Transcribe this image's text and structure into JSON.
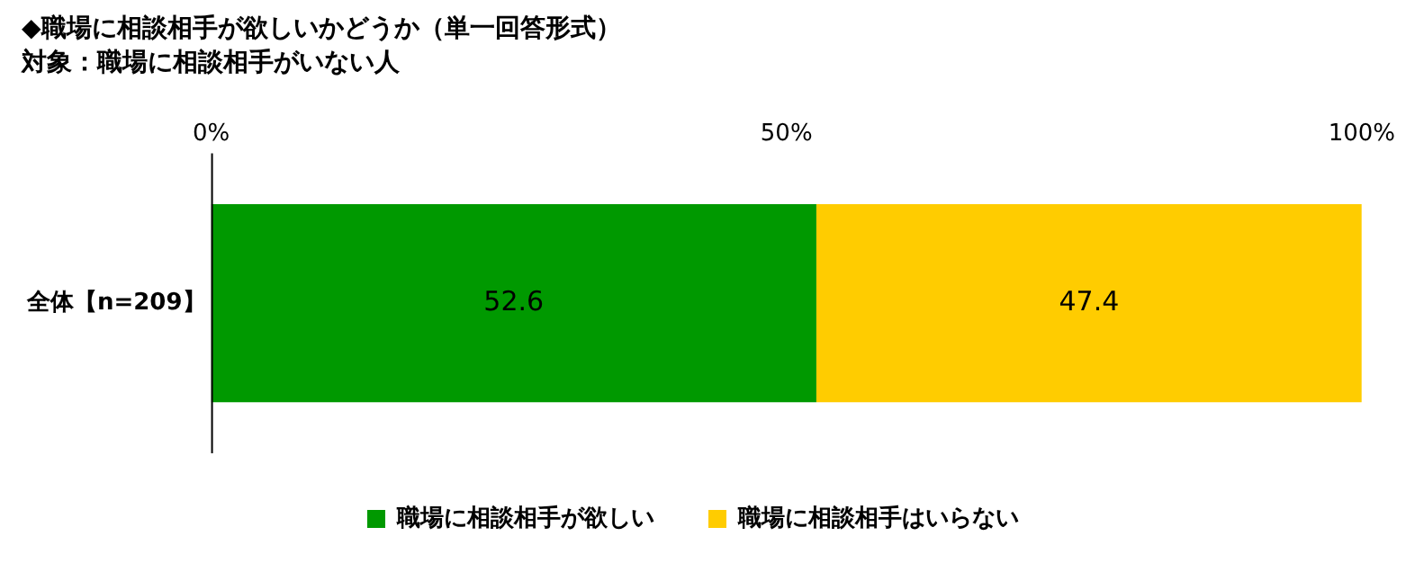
{
  "chart_data": {
    "type": "bar",
    "orientation": "horizontal",
    "stacked": true,
    "title": "◆職場に相談相手が欲しいかどうか（単一回答形式）",
    "subtitle": "対象：職場に相談相手がいない人",
    "categories": [
      "全体【n=209】"
    ],
    "series": [
      {
        "name": "職場に相談相手が欲しい",
        "color": "#009900",
        "values": [
          52.6
        ]
      },
      {
        "name": "職場に相談相手はいらない",
        "color": "#ffcc00",
        "values": [
          47.4
        ]
      }
    ],
    "xlim": [
      0,
      100
    ],
    "xticks": [
      {
        "value": 0,
        "label": "0%"
      },
      {
        "value": 50,
        "label": "50%"
      },
      {
        "value": 100,
        "label": "100%"
      }
    ],
    "grid": false,
    "legend": "bottom",
    "data_labels": true
  }
}
